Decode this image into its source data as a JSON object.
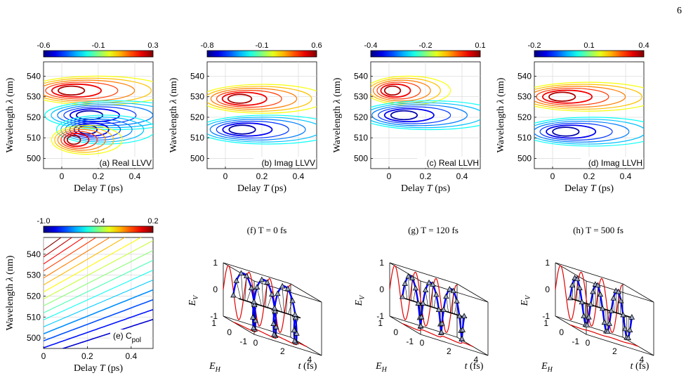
{
  "page": {
    "number": "6"
  },
  "colors": {
    "contour_low": "#0000ff",
    "contour_high": "#ff0000",
    "ellipse_blue": "#0000ff",
    "ellipse_red": "#e00000"
  },
  "chart_data": [
    {
      "id": "a",
      "type": "heatmap",
      "label": "(a) Real LLVV",
      "xlabel": "Delay T (ps)",
      "ylabel": "Wavelength λ (nm)",
      "xlim": [
        -0.1,
        0.5
      ],
      "ylim": [
        495,
        547
      ],
      "xticks": [
        "0",
        "0.2",
        "0.4"
      ],
      "yticks": [
        "500",
        "510",
        "520",
        "530",
        "540"
      ],
      "colorbar": {
        "ticks": [
          "-0.6",
          "-0.1",
          "0.3"
        ],
        "range": [
          -0.6,
          0.3
        ]
      },
      "features": [
        {
          "wavelength": 533,
          "delay": 0.02,
          "sign": "positive"
        },
        {
          "wavelength": 521,
          "delay": 0.05,
          "sign": "negative"
        },
        {
          "wavelength": 514,
          "delay": 0.05,
          "sign": "negative"
        },
        {
          "wavelength": 509,
          "delay": 0.05,
          "sign": "positive"
        }
      ]
    },
    {
      "id": "b",
      "type": "heatmap",
      "label": "(b) Imag LLVV",
      "xlabel": "Delay T (ps)",
      "ylabel": "Wavelength λ (nm)",
      "xlim": [
        -0.1,
        0.5
      ],
      "ylim": [
        495,
        547
      ],
      "xticks": [
        "0",
        "0.2",
        "0.4"
      ],
      "yticks": [
        "500",
        "510",
        "520",
        "530",
        "540"
      ],
      "colorbar": {
        "ticks": [
          "-0.8",
          "-0.1",
          "0.6"
        ],
        "range": [
          -0.8,
          0.6
        ]
      },
      "features": [
        {
          "wavelength": 530,
          "delay": 0.02,
          "sign": "positive"
        },
        {
          "wavelength": 514,
          "delay": 0.03,
          "sign": "negative"
        }
      ]
    },
    {
      "id": "c",
      "type": "heatmap",
      "label": "(c) Real LLVH",
      "xlabel": "Delay T (ps)",
      "ylabel": "Wavelength λ (nm)",
      "xlim": [
        -0.1,
        0.5
      ],
      "ylim": [
        495,
        547
      ],
      "xticks": [
        "0",
        "0.2",
        "0.4"
      ],
      "yticks": [
        "500",
        "510",
        "520",
        "530",
        "540"
      ],
      "colorbar": {
        "ticks": [
          "-0.4",
          "-0.2",
          "0.1"
        ],
        "range": [
          -0.4,
          0.1
        ]
      },
      "features": [
        {
          "wavelength": 532,
          "delay": 0.0,
          "sign": "positive"
        },
        {
          "wavelength": 520,
          "delay": 0.03,
          "sign": "negative"
        }
      ]
    },
    {
      "id": "d",
      "type": "heatmap",
      "label": "(d) Imag LLVH",
      "xlabel": "Delay T (ps)",
      "ylabel": "Wavelength λ (nm)",
      "xlim": [
        -0.1,
        0.5
      ],
      "ylim": [
        495,
        547
      ],
      "xticks": [
        "0",
        "0.2",
        "0.4"
      ],
      "yticks": [
        "500",
        "510",
        "520",
        "530",
        "540"
      ],
      "colorbar": {
        "ticks": [
          "-0.2",
          "0.1",
          "0.4"
        ],
        "range": [
          -0.2,
          0.4
        ]
      },
      "features": [
        {
          "wavelength": 531,
          "delay": 0.02,
          "sign": "positive"
        },
        {
          "wavelength": 513,
          "delay": 0.02,
          "sign": "negative"
        }
      ]
    },
    {
      "id": "e",
      "type": "heatmap",
      "label": "(e) C",
      "label_sub": "pol",
      "xlabel": "Delay T (ps)",
      "ylabel": "Wavelength λ (nm)",
      "xlim": [
        0,
        0.5
      ],
      "ylim": [
        495,
        548
      ],
      "xticks": [
        "0",
        "0.2",
        "0.4"
      ],
      "yticks": [
        "500",
        "510",
        "520",
        "530",
        "540"
      ],
      "colorbar": {
        "ticks": [
          "-1.0",
          "-0.4",
          "0.2"
        ],
        "range": [
          -1.0,
          0.2
        ]
      }
    },
    {
      "id": "f",
      "type": "scatter",
      "title": "(f) T = 0 fs",
      "xlabel": "E_H",
      "ylabel": "E_V",
      "tlabel": "t (fs)",
      "eh_ticks": [
        "1",
        "0",
        "-1"
      ],
      "ev_ticks": [
        "1",
        "0",
        "-1"
      ],
      "t_ticks": [
        "0",
        "2",
        "4"
      ],
      "amp_h": 0.35,
      "amp_v": 1.0,
      "cycles": 3
    },
    {
      "id": "g",
      "type": "scatter",
      "title": "(g) T = 120 fs",
      "xlabel": "E_H",
      "ylabel": "E_V",
      "tlabel": "t (fs)",
      "eh_ticks": [
        "1",
        "0",
        "-1"
      ],
      "ev_ticks": [
        "1",
        "0",
        "-1"
      ],
      "t_ticks": [
        "0",
        "2",
        "4"
      ],
      "amp_h": 0.18,
      "amp_v": 0.9,
      "cycles": 3
    },
    {
      "id": "h",
      "type": "scatter",
      "title": "(h) T = 500 fs",
      "xlabel": "E_H",
      "ylabel": "E_V",
      "tlabel": "t (fs)",
      "eh_ticks": [
        "1",
        "0",
        "-1"
      ],
      "ev_ticks": [
        "1",
        "0",
        "-1"
      ],
      "t_ticks": [
        "0",
        "2",
        "4"
      ],
      "amp_h": 0.05,
      "amp_v": 0.85,
      "cycles": 3
    }
  ]
}
